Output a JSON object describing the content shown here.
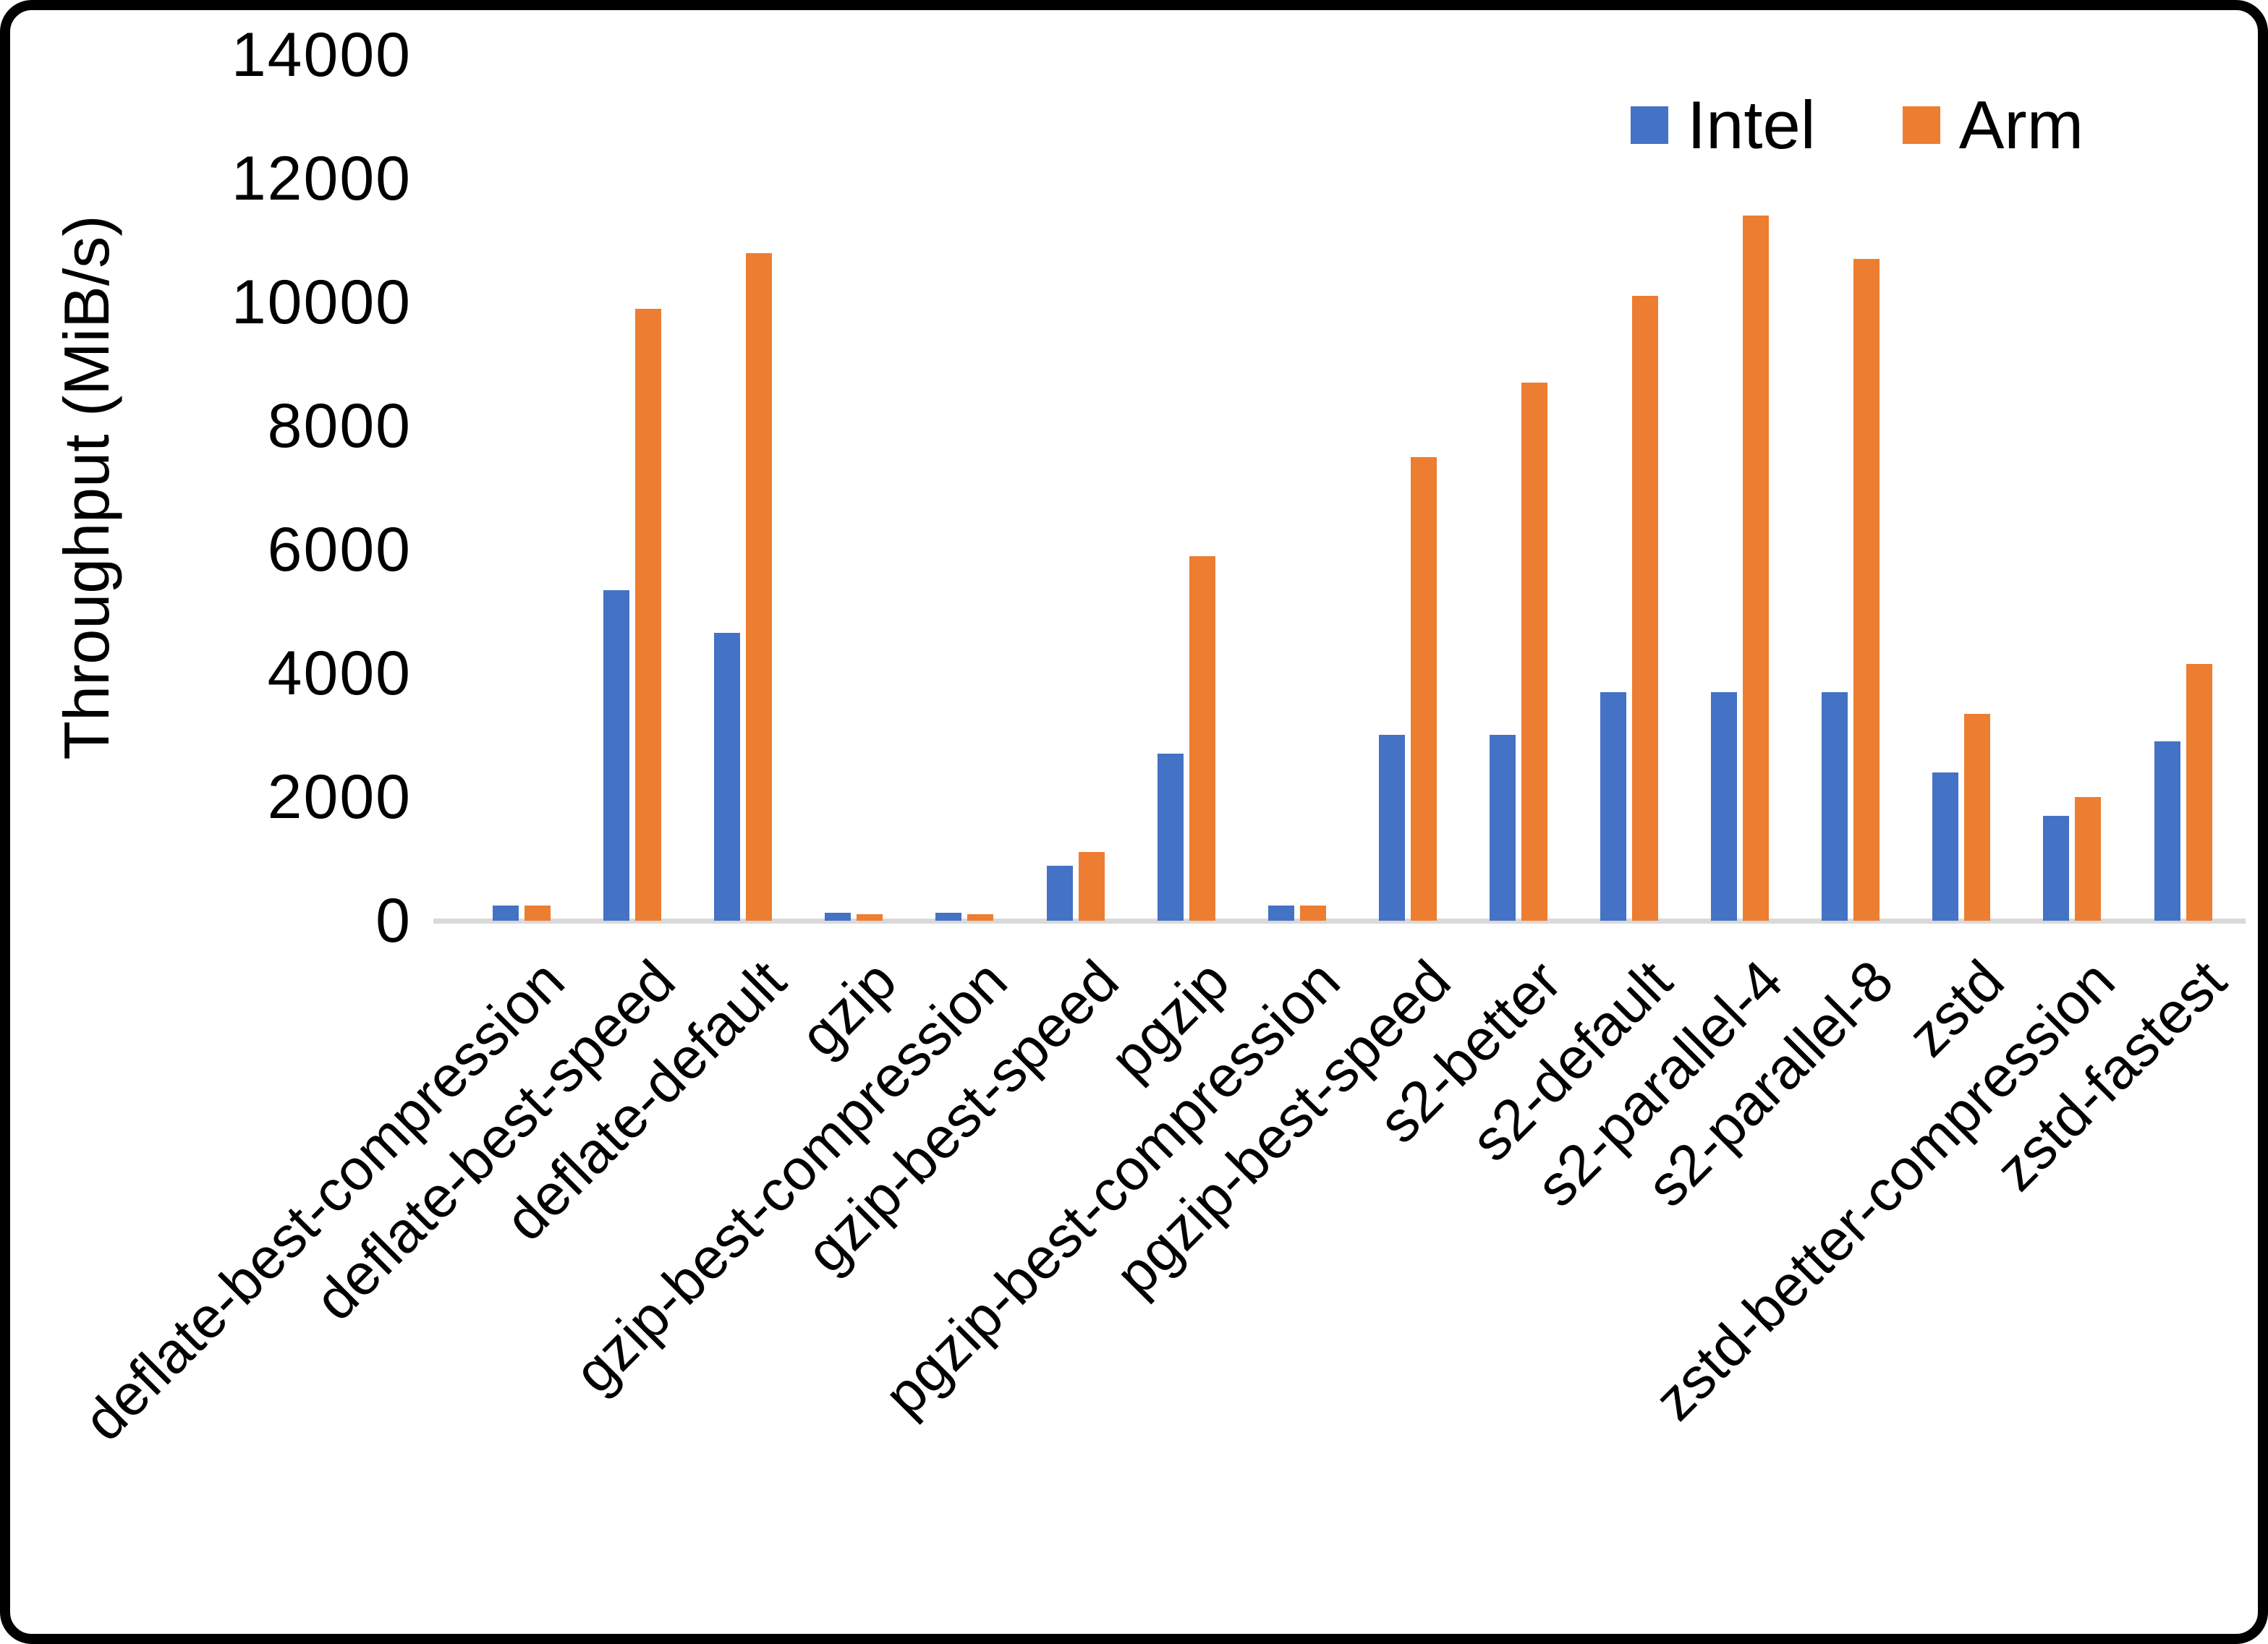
{
  "chart_data": {
    "type": "bar",
    "title": "",
    "xlabel": "",
    "ylabel": "Throughput (MiB/s)",
    "ylim": [
      0,
      14000
    ],
    "ytick_step": 2000,
    "yticks": [
      0,
      2000,
      4000,
      6000,
      8000,
      10000,
      12000,
      14000
    ],
    "grid": false,
    "legend_position": "top-right",
    "categories": [
      "deflate-best-compression",
      "deflate-best-speed",
      "deflate-default",
      "gzip",
      "gzip-best-compression",
      "gzip-best-speed",
      "pgzip",
      "pgzip-best-compression",
      "pgzip-best-speed",
      "s2-better",
      "s2-default",
      "s2-parallel-4",
      "s2-parallel-8",
      "zstd",
      "zstd-better-compression",
      "zstd-fastest"
    ],
    "series": [
      {
        "name": "Intel",
        "color": "#4472C4",
        "values": [
          250,
          5350,
          4650,
          130,
          130,
          890,
          2700,
          240,
          3000,
          3000,
          3700,
          3700,
          3700,
          2400,
          1700,
          2900
        ]
      },
      {
        "name": "Arm",
        "color": "#ED7D31",
        "values": [
          250,
          9900,
          10800,
          100,
          100,
          1110,
          5900,
          240,
          7500,
          8700,
          10100,
          11400,
          10700,
          3350,
          2000,
          4150
        ]
      }
    ]
  },
  "legend": {
    "items": [
      {
        "label": "Intel",
        "color": "#4472C4"
      },
      {
        "label": "Arm",
        "color": "#ED7D31"
      }
    ]
  },
  "axis": {
    "y_title": "Throughput (MiB/s)"
  }
}
